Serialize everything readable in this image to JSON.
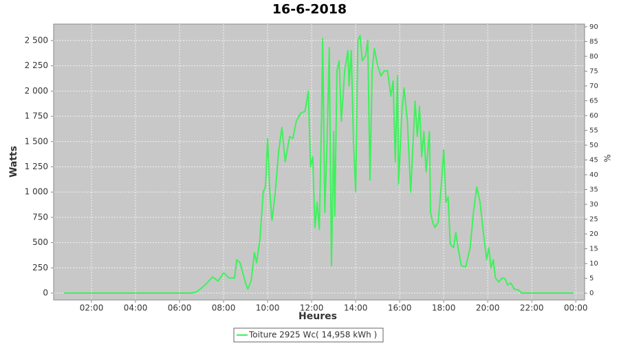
{
  "chart_data": {
    "type": "line",
    "title": "16-6-2018",
    "xlabel": "Heures",
    "ylabel": "Watts",
    "y2label": "%",
    "xlim": [
      0.28,
      24.4
    ],
    "xticks": [
      {
        "value": 2,
        "label": "02:00"
      },
      {
        "value": 4,
        "label": "04:00"
      },
      {
        "value": 6,
        "label": "06:00"
      },
      {
        "value": 8,
        "label": "08:00"
      },
      {
        "value": 10,
        "label": "10:00"
      },
      {
        "value": 12,
        "label": "12:00"
      },
      {
        "value": 14,
        "label": "14:00"
      },
      {
        "value": 16,
        "label": "16:00"
      },
      {
        "value": 18,
        "label": "18:00"
      },
      {
        "value": 20,
        "label": "20:00"
      },
      {
        "value": 22,
        "label": "22:00"
      },
      {
        "value": 24,
        "label": "00:00"
      }
    ],
    "ylim": [
      -68,
      2663
    ],
    "yticks": [
      0,
      250,
      500,
      750,
      {
        "value": 1000,
        "label": "1 000"
      },
      {
        "value": 1250,
        "label": "1 250"
      },
      {
        "value": 1500,
        "label": "1 500"
      },
      {
        "value": 1750,
        "label": "1 750"
      },
      {
        "value": 2000,
        "label": "2 000"
      },
      {
        "value": 2250,
        "label": "2 250"
      },
      {
        "value": 2500,
        "label": "2 500"
      }
    ],
    "y2lim": [
      -2.3,
      90.9
    ],
    "y2ticks": [
      0,
      5,
      10,
      15,
      20,
      25,
      30,
      35,
      40,
      45,
      50,
      55,
      60,
      65,
      70,
      75,
      80,
      85,
      90
    ],
    "grid": true,
    "legend": "bottom",
    "x": [
      0.75,
      6.5,
      6.75,
      7.0,
      7.25,
      7.5,
      7.75,
      8.0,
      8.25,
      8.5,
      8.6,
      8.75,
      9.0,
      9.1,
      9.25,
      9.4,
      9.5,
      9.65,
      9.8,
      9.9,
      10.0,
      10.1,
      10.2,
      10.35,
      10.5,
      10.65,
      10.8,
      11.0,
      11.15,
      11.3,
      11.5,
      11.7,
      11.85,
      11.95,
      12.05,
      12.15,
      12.25,
      12.35,
      12.45,
      12.5,
      12.6,
      12.7,
      12.8,
      12.9,
      13.0,
      13.05,
      13.15,
      13.25,
      13.35,
      13.5,
      13.65,
      13.7,
      13.8,
      13.9,
      14.0,
      14.1,
      14.2,
      14.3,
      14.45,
      14.55,
      14.65,
      14.75,
      14.85,
      15.0,
      15.15,
      15.3,
      15.45,
      15.6,
      15.7,
      15.8,
      15.9,
      15.95,
      16.1,
      16.2,
      16.35,
      16.5,
      16.7,
      16.8,
      16.9,
      17.0,
      17.1,
      17.2,
      17.35,
      17.4,
      17.5,
      17.6,
      17.75,
      17.9,
      18.0,
      18.1,
      18.2,
      18.3,
      18.45,
      18.55,
      18.65,
      18.8,
      19.0,
      19.2,
      19.35,
      19.5,
      19.65,
      19.8,
      19.95,
      20.05,
      20.15,
      20.25,
      20.35,
      20.5,
      20.65,
      20.8,
      20.9,
      21.05,
      21.2,
      21.4,
      21.55,
      23.9
    ],
    "series": [
      {
        "name": "Toiture 2925 Wc( 14,958 kWh )",
        "color": "#3cf25a",
        "values": [
          0,
          0,
          10,
          50,
          100,
          160,
          120,
          200,
          150,
          150,
          330,
          300,
          100,
          40,
          120,
          400,
          300,
          530,
          1000,
          1050,
          1530,
          1000,
          720,
          1000,
          1400,
          1640,
          1300,
          1550,
          1530,
          1700,
          1780,
          1800,
          2000,
          1250,
          1350,
          650,
          900,
          630,
          1750,
          2520,
          800,
          1500,
          2430,
          270,
          1600,
          760,
          2200,
          2300,
          1700,
          2200,
          2400,
          2050,
          2400,
          1500,
          1000,
          2500,
          2550,
          2300,
          2350,
          2500,
          1120,
          2200,
          2420,
          2250,
          2150,
          2200,
          2200,
          1950,
          2100,
          1300,
          2150,
          1080,
          1800,
          2030,
          1700,
          1000,
          1900,
          1550,
          1850,
          1350,
          1600,
          1200,
          1600,
          800,
          700,
          650,
          700,
          1100,
          1420,
          900,
          950,
          480,
          450,
          600,
          450,
          270,
          260,
          450,
          800,
          1050,
          900,
          600,
          330,
          450,
          250,
          330,
          150,
          110,
          150,
          140,
          80,
          100,
          40,
          30,
          0,
          0
        ]
      }
    ]
  }
}
